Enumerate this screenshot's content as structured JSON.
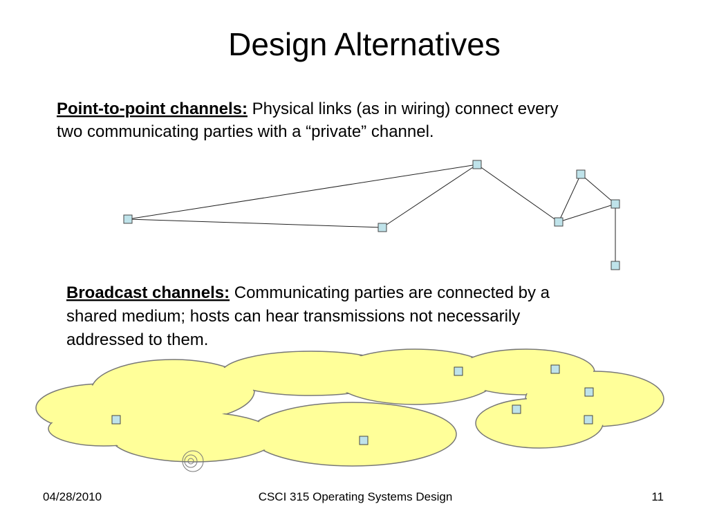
{
  "header": {
    "title": "Design Alternatives"
  },
  "sections": [
    {
      "lead": "Point-to-point channels:",
      "lines": [
        "Physical links (as in wiring) connect every",
        "two communicating parties with a “private” channel."
      ]
    },
    {
      "lead": "Broadcast channels:",
      "lines": [
        "Communicating parties are connected by a",
        "shared medium; hosts can hear transmissions not necessarily",
        "addressed to them."
      ]
    }
  ],
  "footer": {
    "date": "04/28/2010",
    "course": "CSCI 315 Operating Systems Design",
    "page": "11"
  }
}
